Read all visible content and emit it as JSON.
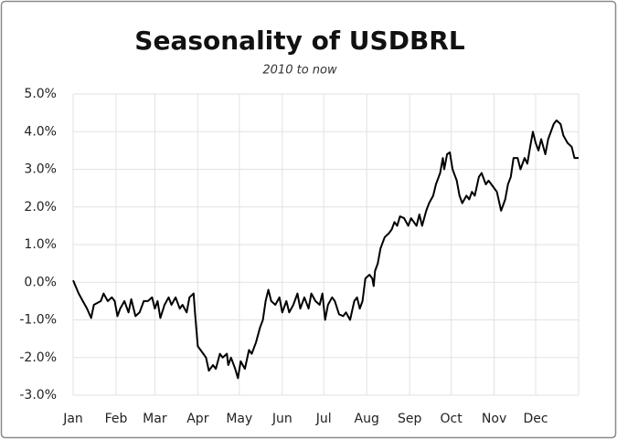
{
  "chart_data": {
    "type": "line",
    "title": "Seasonality of USDBRL",
    "subtitle": "2010 to now",
    "color": "#000000",
    "grid": true,
    "xlim": [
      1,
      366
    ],
    "xticks": [
      {
        "value": 1,
        "label": "Jan"
      },
      {
        "value": 32,
        "label": "Feb"
      },
      {
        "value": 60,
        "label": "Mar"
      },
      {
        "value": 91,
        "label": "Apr"
      },
      {
        "value": 121,
        "label": "May"
      },
      {
        "value": 152,
        "label": "Jun"
      },
      {
        "value": 182,
        "label": "Jul"
      },
      {
        "value": 213,
        "label": "Aug"
      },
      {
        "value": 244,
        "label": "Sep"
      },
      {
        "value": 274,
        "label": "Oct"
      },
      {
        "value": 305,
        "label": "Nov"
      },
      {
        "value": 335,
        "label": "Dec"
      }
    ],
    "ylim": [
      -3,
      5
    ],
    "yticks": [
      {
        "value": 5,
        "label": "5.0%"
      },
      {
        "value": 4,
        "label": "4.0%"
      },
      {
        "value": 3,
        "label": "3.0%"
      },
      {
        "value": 2,
        "label": "2.0%"
      },
      {
        "value": 1,
        "label": "1.0%"
      },
      {
        "value": 0,
        "label": "0.0%"
      },
      {
        "value": -1,
        "label": "-1.0%"
      },
      {
        "value": -2,
        "label": "-2.0%"
      },
      {
        "value": -3,
        "label": "-3.0%"
      }
    ],
    "x": [
      1,
      5,
      8,
      11,
      14,
      16,
      21,
      23,
      26,
      29,
      31,
      33,
      35,
      38,
      41,
      43,
      46,
      49,
      52,
      55,
      58,
      60,
      62,
      64,
      67,
      70,
      72,
      75,
      78,
      80,
      83,
      85,
      88,
      89,
      91,
      95,
      97,
      99,
      102,
      104,
      107,
      109,
      112,
      113,
      115,
      118,
      120,
      122,
      125,
      128,
      130,
      133,
      136,
      138,
      140,
      142,
      144,
      147,
      150,
      152,
      155,
      157,
      160,
      163,
      165,
      168,
      171,
      173,
      176,
      179,
      181,
      183,
      185,
      188,
      190,
      193,
      196,
      198,
      201,
      204,
      206,
      208,
      210,
      212,
      215,
      217,
      218,
      219,
      221,
      223,
      226,
      229,
      231,
      233,
      235,
      237,
      240,
      243,
      245,
      249,
      251,
      253,
      256,
      258,
      261,
      263,
      266,
      268,
      269,
      271,
      273,
      275,
      278,
      280,
      282,
      285,
      287,
      289,
      291,
      294,
      296,
      299,
      301,
      305,
      307,
      310,
      313,
      315,
      317,
      319,
      322,
      324,
      327,
      329,
      331,
      333,
      335,
      337,
      339,
      342,
      344,
      348,
      350,
      353,
      355,
      358,
      361,
      363,
      366
    ],
    "values": [
      0.05,
      -0.3,
      -0.5,
      -0.7,
      -0.95,
      -0.6,
      -0.5,
      -0.3,
      -0.5,
      -0.4,
      -0.5,
      -0.9,
      -0.7,
      -0.5,
      -0.8,
      -0.45,
      -0.9,
      -0.8,
      -0.5,
      -0.5,
      -0.4,
      -0.7,
      -0.5,
      -0.95,
      -0.6,
      -0.4,
      -0.6,
      -0.4,
      -0.7,
      -0.6,
      -0.8,
      -0.4,
      -0.3,
      -0.8,
      -1.7,
      -1.9,
      -2.0,
      -2.35,
      -2.2,
      -2.3,
      -1.9,
      -2.0,
      -1.9,
      -2.2,
      -2.0,
      -2.3,
      -2.55,
      -2.1,
      -2.3,
      -1.8,
      -1.9,
      -1.6,
      -1.2,
      -1.0,
      -0.5,
      -0.2,
      -0.5,
      -0.6,
      -0.4,
      -0.8,
      -0.5,
      -0.8,
      -0.6,
      -0.3,
      -0.7,
      -0.4,
      -0.7,
      -0.3,
      -0.5,
      -0.6,
      -0.3,
      -1.0,
      -0.6,
      -0.4,
      -0.5,
      -0.85,
      -0.9,
      -0.8,
      -1.0,
      -0.5,
      -0.4,
      -0.7,
      -0.5,
      0.1,
      0.2,
      0.1,
      -0.1,
      0.3,
      0.5,
      0.9,
      1.2,
      1.3,
      1.4,
      1.6,
      1.5,
      1.75,
      1.7,
      1.5,
      1.7,
      1.5,
      1.8,
      1.5,
      1.9,
      2.1,
      2.3,
      2.6,
      2.9,
      3.3,
      3.0,
      3.4,
      3.45,
      3.0,
      2.7,
      2.3,
      2.1,
      2.3,
      2.2,
      2.4,
      2.3,
      2.8,
      2.9,
      2.6,
      2.7,
      2.5,
      2.4,
      1.9,
      2.2,
      2.6,
      2.8,
      3.3,
      3.3,
      3.0,
      3.3,
      3.15,
      3.6,
      4.0,
      3.7,
      3.5,
      3.8,
      3.4,
      3.8,
      4.2,
      4.3,
      4.2,
      3.9,
      3.7,
      3.6,
      3.3,
      3.3
    ]
  }
}
